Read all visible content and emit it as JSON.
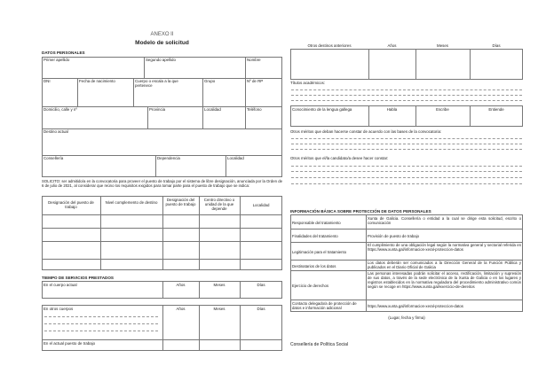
{
  "header": {
    "annex": "ANEXO II",
    "title": "Modelo de solicitud"
  },
  "personal": {
    "section": "DATOS PERSONALES",
    "primer_apellido": "Primer apellido",
    "segundo_apellido": "Segundo apellido",
    "nombre": "Nombre",
    "dni": "DNI",
    "fecha_nacimiento": "Fecha de nacimiento",
    "cuerpo": "Cuerpo o escala a la que pertenece",
    "grupo": "Grupo",
    "nrp": "Nº de RP",
    "domicilio": "Domicilio, calle y nº",
    "provincia": "Provincia",
    "localidad": "Localidad",
    "telefono": "Teléfono",
    "destino_actual": "Destino actual",
    "conselleria": "Consellería",
    "dependencia": "Dependencia",
    "localidad2": "Localidad"
  },
  "solicito": "SOLICITO: ser admitido/a en la convocatoria para proveer el puesto de trabajo por el sistema de libre designación, anunciada por la Orden de 6 de julio de 2021, al considerar que reúno los requisitos exigidos para tomar parte para el puesto de trabajo que se indica:",
  "puestos": {
    "headers": [
      "Designación del puesto de trabajo",
      "Nivel complemento de destino",
      "Designación del puesto de trabajo",
      "Centro directivo o unidad de la que depende",
      "Localidad"
    ]
  },
  "tiempo": {
    "section": "TIEMPO DE SERVICIOS PRESTADOS",
    "cuerpo_actual": "En el cuerpo actual",
    "otros_cuerpos": "En otros cuerpos",
    "actual_puesto": "En el actual puesto de trabajo",
    "anos": "Años",
    "meses": "Meses",
    "dias": "Días"
  },
  "destinos": {
    "label": "Otros destinos anteriores",
    "anos": "Años",
    "meses": "Meses",
    "dias": "Días"
  },
  "titulos": "Títulos académicos:",
  "gallego": {
    "label": "Conocimiento de la lengua gallega",
    "habla": "Habla",
    "escribe": "Escribe",
    "entiende": "Entiende"
  },
  "meritos1": "Otros méritos que deban hacerse constar de acuerdo con las bases de la convocatoria:",
  "meritos2": "Otros méritos que el/la candidato/a desee hacer constar:",
  "proteccion": {
    "section": "INFORMACIÓN BÁSICA SOBRE PROTECCIÓN DE DATOS PERSONALES",
    "rows": [
      {
        "k": "Responsable del tratamiento",
        "v": "Xunta de Galicia. Consellería o entidad a la cual se dirige esta solicitud, escrito o comunicación"
      },
      {
        "k": "Finalidades del tratamiento",
        "v": "Provisión de puesto de trabajo"
      },
      {
        "k": "Legitimación para el tratamiento",
        "v": "El cumplimiento de una obligación legal según la normativa general y sectorial referida en https://www.xunta.gal/informacion-xeral-proteccion-datos"
      },
      {
        "k": "Destinatarios de los datos",
        "v": "Los datos deberán ser comunicados a la Dirección General de la Función Pública y publicados en el Diario Oficial de Galicia"
      },
      {
        "k": "Ejercicio de derechos",
        "v": "Las personas interesadas podrán solicitar el acceso, rectificación, limitación y supresión de sus datos, a través de la sede electrónica de la Xunta de Galicia o en los lugares y registros establecidos en la normativa reguladora del procedimiento administrativo común según se recoge en https://www.xunta.gal/exercicio-de-dereitos"
      },
      {
        "k": "Contacto delegado/a de protección de datos e información adicional",
        "v": "https://www.xunta.gal/informacion-xeral-proteccion-datos"
      }
    ]
  },
  "firma": "(Lugar, fecha y firma)",
  "footer": "Consellería de Política Social"
}
